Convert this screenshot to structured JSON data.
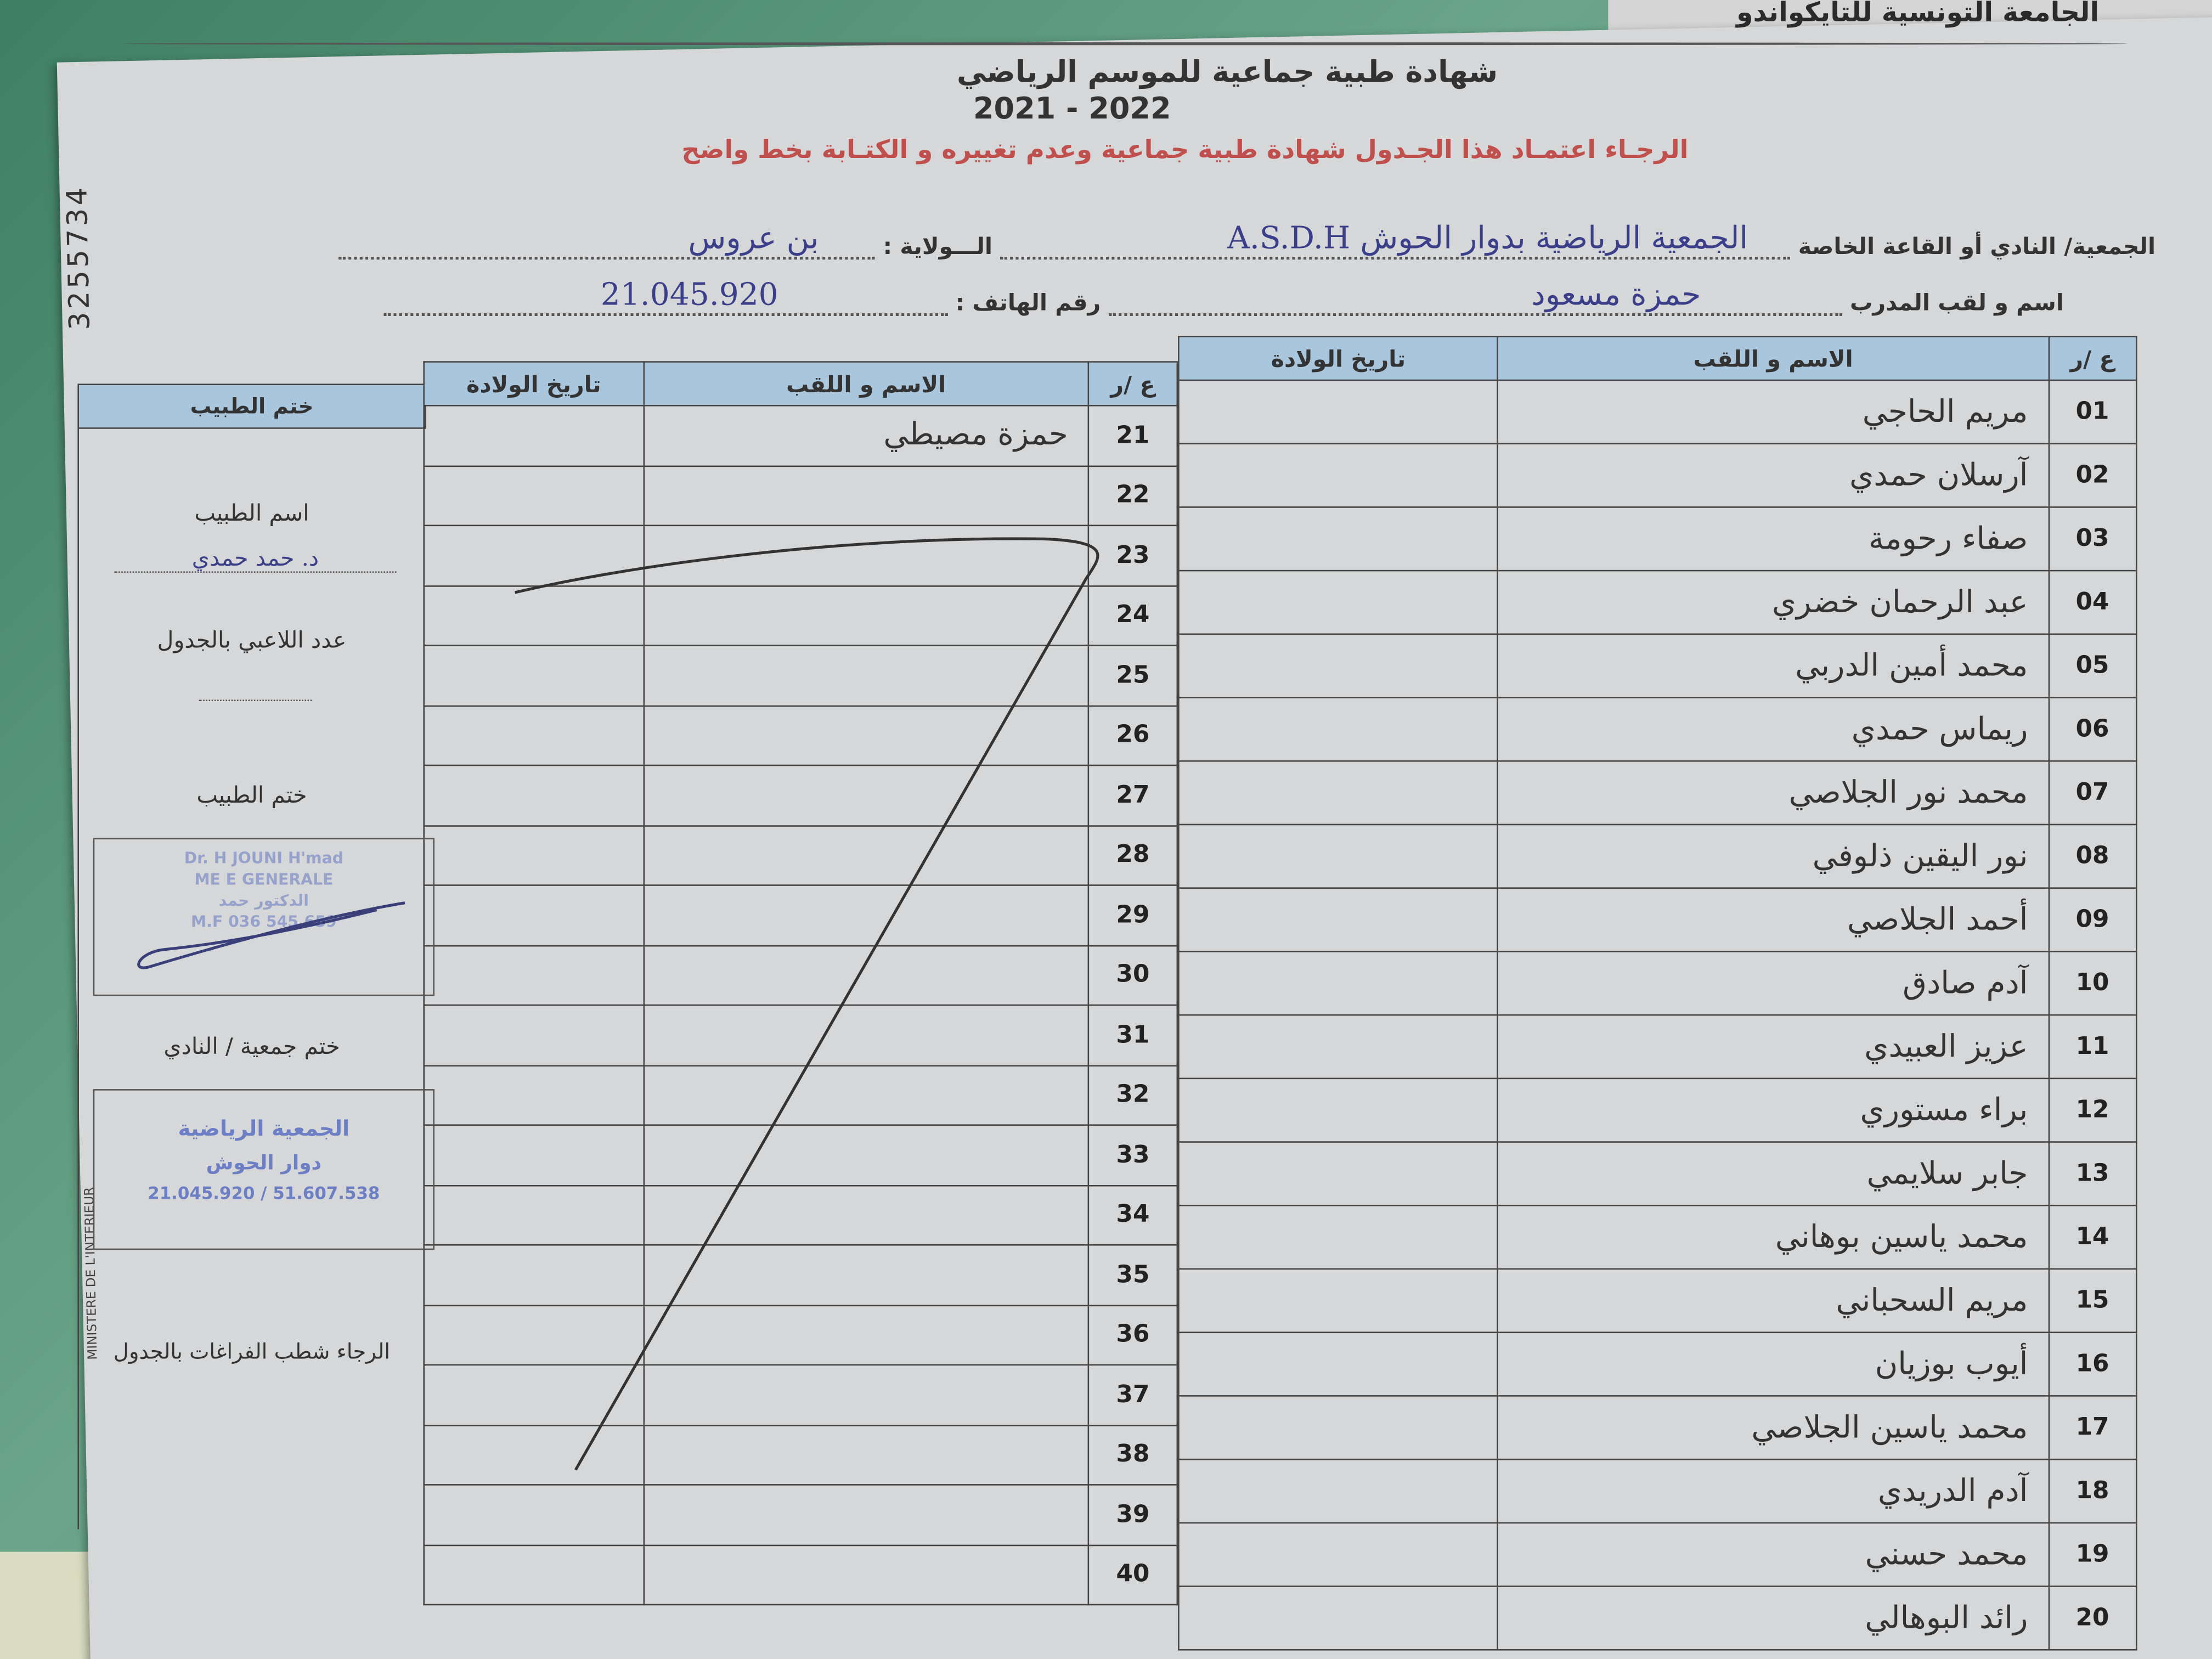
{
  "header": {
    "federation": "الجامعة التونسية للتايكواندو",
    "title_line1": "شهادة طبية جماعية  للموسم الرياضي",
    "season": "2021 - 2022",
    "notice": "الرجـاء اعتمـاد هذا الجـدول  شهادة طبية جماعية وعدم تغييره و الكتـابة بخط واضح"
  },
  "form": {
    "club_label": "الجمعية/ النادي أو القاعة الخاصة",
    "club_value": "الجمعية الرياضية بدوار الحوش A.S.D.H",
    "wilaya_label": "الـــولاية :",
    "wilaya_value": "بن عروس",
    "coach_label": "اسم و لقب المدرب",
    "coach_value": "حمزة مسعود",
    "phone_label": "رقم الهاتف :",
    "phone_value": "21.045.920"
  },
  "table": {
    "col_number": "ع /ر",
    "col_name": "الاسم و اللقب",
    "col_birth": "تاريخ الولادة",
    "col_stamp": "ختم الطبيب",
    "rows_right": [
      {
        "n": "01",
        "name": "مريم الحاجي"
      },
      {
        "n": "02",
        "name": "آرسلان حمدي"
      },
      {
        "n": "03",
        "name": "صفاء رحومة"
      },
      {
        "n": "04",
        "name": "عبد الرحمان خضري"
      },
      {
        "n": "05",
        "name": "محمد أمين الدربي"
      },
      {
        "n": "06",
        "name": "ريماس حمدي"
      },
      {
        "n": "07",
        "name": "محمد نور الجلاصي"
      },
      {
        "n": "08",
        "name": "نور اليقين ذلوفي"
      },
      {
        "n": "09",
        "name": "أحمد الجلاصي"
      },
      {
        "n": "10",
        "name": "آدم صادق"
      },
      {
        "n": "11",
        "name": "عزيز العبيدي"
      },
      {
        "n": "12",
        "name": "براء مستوري"
      },
      {
        "n": "13",
        "name": "جابر سلايمي"
      },
      {
        "n": "14",
        "name": "محمد ياسين بوهاني"
      },
      {
        "n": "15",
        "name": "مريم السحباني"
      },
      {
        "n": "16",
        "name": "أيوب بوزيان"
      },
      {
        "n": "17",
        "name": "محمد ياسين الجلاصي"
      },
      {
        "n": "18",
        "name": "آدم الدريدي"
      },
      {
        "n": "19",
        "name": "محمد حسني"
      },
      {
        "n": "20",
        "name": "رائد البوهالي"
      }
    ],
    "rows_left": [
      {
        "n": "21",
        "name": "حمزة مصيطي"
      },
      {
        "n": "22",
        "name": ""
      },
      {
        "n": "23",
        "name": ""
      },
      {
        "n": "24",
        "name": ""
      },
      {
        "n": "25",
        "name": ""
      },
      {
        "n": "26",
        "name": ""
      },
      {
        "n": "27",
        "name": ""
      },
      {
        "n": "28",
        "name": ""
      },
      {
        "n": "29",
        "name": ""
      },
      {
        "n": "30",
        "name": ""
      },
      {
        "n": "31",
        "name": ""
      },
      {
        "n": "32",
        "name": ""
      },
      {
        "n": "33",
        "name": ""
      },
      {
        "n": "34",
        "name": ""
      },
      {
        "n": "35",
        "name": ""
      },
      {
        "n": "36",
        "name": ""
      },
      {
        "n": "37",
        "name": ""
      },
      {
        "n": "38",
        "name": ""
      },
      {
        "n": "39",
        "name": ""
      },
      {
        "n": "40",
        "name": ""
      }
    ]
  },
  "side": {
    "doctor_name_label": "اسم الطبيب",
    "doctor_name_value": "د. حمد حمدي",
    "player_count_label": "عدد اللاعبي بالجدول",
    "doctor_stamp_label": "ختم الطبيب",
    "doctor_stamp_lines": [
      "Dr. H    JOUNI H'mad",
      "ME    E GENERALE",
      "الدكتور حمد",
      "M.F 036     545.659"
    ],
    "club_stamp_label": "ختم جمعية / النادي",
    "club_stamp_line1": "الجمعية الرياضية",
    "club_stamp_line2": "دوار الحوش",
    "club_stamp_line3": "21.045.920 / 51.607.538",
    "footer_note": "الرجاء شطب  الفراغات بالجدول"
  },
  "margin": {
    "number": "3255734",
    "ministry": "MINISTERE DE L'INTERIEUR"
  },
  "colors": {
    "header_fill": "#a9c6dc",
    "notice_red": "#c0504d",
    "ink_blue": "#3b3f8a",
    "stamp_blue": "#6d7fc4"
  }
}
